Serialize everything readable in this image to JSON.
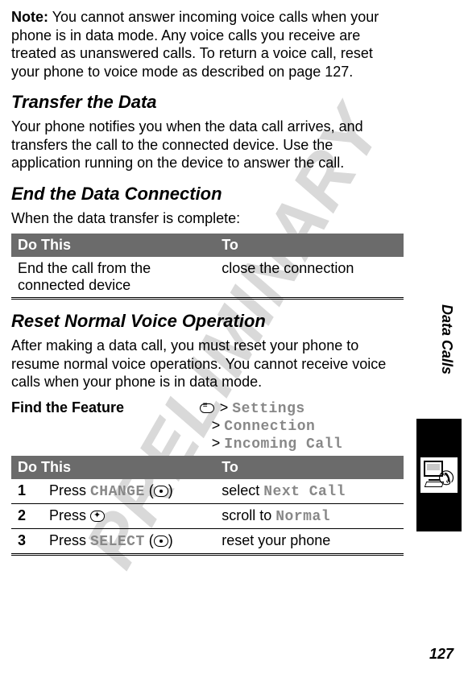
{
  "watermark": "PRELIMINARY",
  "note": {
    "label": "Note:",
    "text": "You cannot answer incoming voice calls when your phone is in data mode. Any voice calls you receive are treated as unanswered calls. To return a voice call, reset your phone to voice mode as described on page 127."
  },
  "section1": {
    "heading": "Transfer the Data",
    "body": "Your phone notifies you when the data call arrives, and transfers the call to the connected device. Use the application running on the device to answer the call."
  },
  "section2": {
    "heading": "End the Data Connection",
    "intro": "When the data transfer is complete:",
    "table": {
      "header_do": "Do This",
      "header_to": "To",
      "row1_do": "End the call from the connected device",
      "row1_to": "close the connection"
    }
  },
  "section3": {
    "heading": "Reset Normal Voice Operation",
    "body": "After making a data call, you must reset your phone to resume normal voice operations. You cannot receive voice calls when your phone is in data mode."
  },
  "feature": {
    "label": "Find the Feature",
    "path1_prefix": ">",
    "path1": "Settings",
    "path2_prefix": ">",
    "path2": "Connection",
    "path3_prefix": ">",
    "path3": "Incoming Call"
  },
  "table3": {
    "header_do": "Do This",
    "header_to": "To",
    "rows": [
      {
        "num": "1",
        "do_prefix": "Press ",
        "do_key": "CHANGE",
        "do_suffix": " (",
        "do_icon": "dot",
        "do_close": ")",
        "to_prefix": "select ",
        "to_key": "Next Call"
      },
      {
        "num": "2",
        "do_prefix": "Press ",
        "do_key": "",
        "do_icon": "nav",
        "to_prefix": "scroll to ",
        "to_key": "Normal"
      },
      {
        "num": "3",
        "do_prefix": "Press ",
        "do_key": "SELECT",
        "do_suffix": " (",
        "do_icon": "dot",
        "do_close": ")",
        "to_prefix": "reset your phone",
        "to_key": ""
      }
    ]
  },
  "side_tab": "Data Calls",
  "page_number": "127"
}
